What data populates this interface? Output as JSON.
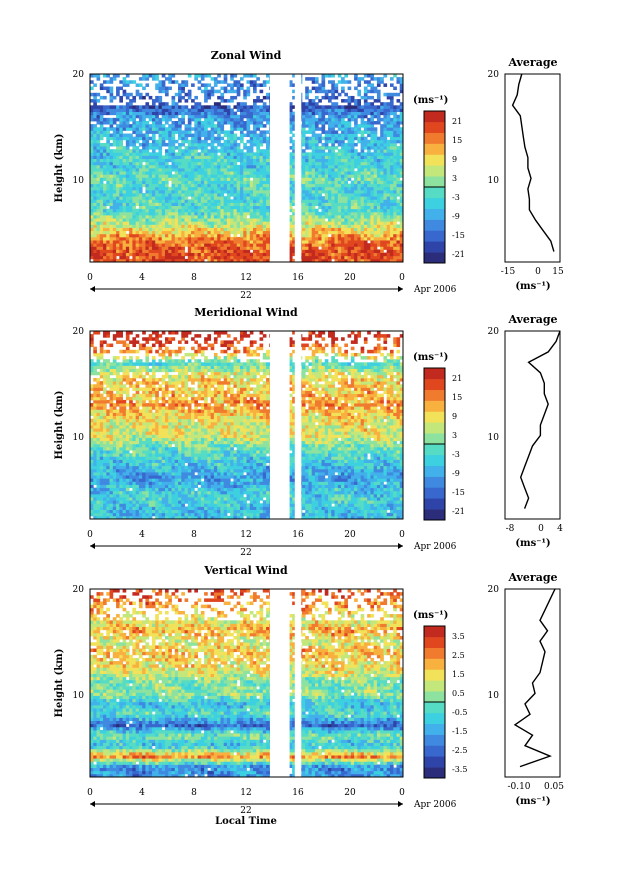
{
  "figure": {
    "xaxis_label": "Local Time",
    "date_label": "Apr 2006",
    "day_label": "22",
    "units": "(ms⁻¹)"
  },
  "chart_data": [
    {
      "type": "heatmap",
      "title": "Zonal Wind",
      "xlabel": "Local Time",
      "ylabel": "Height (km)",
      "x_ticks": [
        "0",
        "4",
        "8",
        "12",
        "16",
        "20",
        "0"
      ],
      "y_ticks": [
        "20",
        "10"
      ],
      "xlim": [
        0,
        24
      ],
      "ylim": [
        2,
        20
      ],
      "colorbar": {
        "label": "(ms⁻¹)",
        "ticks": [
          "21",
          "15",
          "9",
          "3",
          "-3",
          "-9",
          "-15",
          "-21"
        ],
        "range": [
          -24,
          24
        ]
      },
      "data_gaps": [
        [
          13.8,
          15.3
        ],
        [
          15.7,
          16.2
        ]
      ],
      "profile": {
        "title": "Average",
        "xlabel": "(ms⁻¹)",
        "x_ticks": [
          "-15",
          "0",
          "15"
        ],
        "y_ticks": [
          "20",
          "10"
        ],
        "xlim": [
          -20,
          16
        ],
        "height": [
          3,
          4,
          5,
          6,
          7,
          8,
          9,
          10,
          11,
          12,
          13,
          14,
          15,
          16,
          17,
          18,
          19,
          20
        ],
        "values": [
          12,
          10,
          5,
          0,
          -4,
          -4,
          -5,
          -3,
          -5,
          -5,
          -7,
          -8,
          -9,
          -10,
          -15,
          -12,
          -11,
          -9
        ]
      }
    },
    {
      "type": "heatmap",
      "title": "Meridional Wind",
      "xlabel": "Local Time",
      "ylabel": "Height (km)",
      "x_ticks": [
        "0",
        "4",
        "8",
        "12",
        "16",
        "20",
        "0"
      ],
      "y_ticks": [
        "20",
        "10"
      ],
      "xlim": [
        0,
        24
      ],
      "ylim": [
        2,
        20
      ],
      "colorbar": {
        "label": "(ms⁻¹)",
        "ticks": [
          "21",
          "15",
          "9",
          "3",
          "-3",
          "-9",
          "-15",
          "-21"
        ],
        "range": [
          -24,
          24
        ]
      },
      "data_gaps": [
        [
          13.8,
          15.3
        ],
        [
          15.7,
          16.2
        ]
      ],
      "profile": {
        "title": "Average",
        "xlabel": "(ms⁻¹)",
        "x_ticks": [
          "-8",
          "0",
          "4"
        ],
        "y_ticks": [
          "20",
          "10"
        ],
        "xlim": [
          -10,
          4
        ],
        "height": [
          3,
          4,
          5,
          6,
          7,
          8,
          9,
          10,
          11,
          12,
          13,
          14,
          15,
          16,
          17,
          18,
          19,
          20
        ],
        "values": [
          -5,
          -4,
          -5,
          -6,
          -5,
          -4,
          -3,
          -1,
          -1,
          0,
          1,
          0,
          0,
          -1,
          -4,
          1,
          3,
          4
        ]
      }
    },
    {
      "type": "heatmap",
      "title": "Vertical Wind",
      "xlabel": "Local Time",
      "ylabel": "Height (km)",
      "x_ticks": [
        "0",
        "4",
        "8",
        "12",
        "16",
        "20",
        "0"
      ],
      "y_ticks": [
        "20",
        "10"
      ],
      "xlim": [
        0,
        24
      ],
      "ylim": [
        2,
        20
      ],
      "colorbar": {
        "label": "(ms⁻¹)",
        "ticks": [
          "3.5",
          "2.5",
          "1.5",
          "0.5",
          "-0.5",
          "-1.5",
          "-2.5",
          "-3.5"
        ],
        "range": [
          -4,
          4
        ]
      },
      "data_gaps": [
        [
          13.8,
          15.3
        ],
        [
          15.7,
          16.2
        ]
      ],
      "profile": {
        "title": "Average",
        "xlabel": "(ms⁻¹)",
        "x_ticks": [
          "-0.10",
          "0.05"
        ],
        "y_ticks": [
          "20",
          "10"
        ],
        "xlim": [
          -0.14,
          0.08
        ],
        "height": [
          3,
          4,
          5,
          6,
          7,
          8,
          9,
          10,
          11,
          12,
          13,
          14,
          15,
          16,
          17,
          18,
          19,
          20
        ],
        "values": [
          -0.08,
          0.04,
          -0.06,
          -0.03,
          -0.1,
          -0.04,
          -0.06,
          -0.02,
          -0.03,
          0.0,
          0.01,
          0.02,
          0.0,
          0.03,
          0.0,
          0.02,
          0.04,
          0.06
        ]
      }
    }
  ]
}
